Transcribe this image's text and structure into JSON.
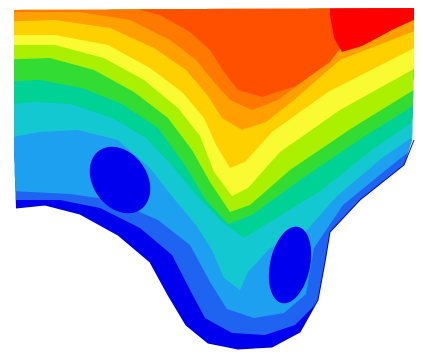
{
  "chart_data": {
    "type": "heatmap",
    "title": "",
    "xlabel": "",
    "ylabel": "",
    "grid": false,
    "legend": "none",
    "colormap": [
      "#0000ee",
      "#1e64f0",
      "#1ea0f0",
      "#14c8d2",
      "#00d296",
      "#32dc32",
      "#aaf000",
      "#fafa32",
      "#ffd000",
      "#ffa000",
      "#ff7800",
      "#ff5000",
      "#ff0000"
    ],
    "levels": [
      {
        "name": "level-01",
        "index": 1,
        "color": "#1e64f0"
      },
      {
        "name": "level-02",
        "index": 2,
        "color": "#1ea0f0"
      },
      {
        "name": "level-03",
        "index": 3,
        "color": "#14c8d2"
      },
      {
        "name": "level-04",
        "index": 4,
        "color": "#00d296"
      },
      {
        "name": "level-05",
        "index": 5,
        "color": "#32dc32"
      },
      {
        "name": "level-06",
        "index": 6,
        "color": "#aaf000"
      },
      {
        "name": "level-07",
        "index": 7,
        "color": "#fafa32"
      },
      {
        "name": "level-08",
        "index": 8,
        "color": "#ffd000"
      },
      {
        "name": "level-09",
        "index": 9,
        "color": "#ffa000"
      },
      {
        "name": "level-10",
        "index": 10,
        "color": "#ff7800"
      },
      {
        "name": "level-11",
        "index": 11,
        "color": "#ff5000"
      },
      {
        "name": "level-12",
        "index": 12,
        "color": "#ff0000"
      }
    ],
    "minima_color": "#0000ee"
  }
}
